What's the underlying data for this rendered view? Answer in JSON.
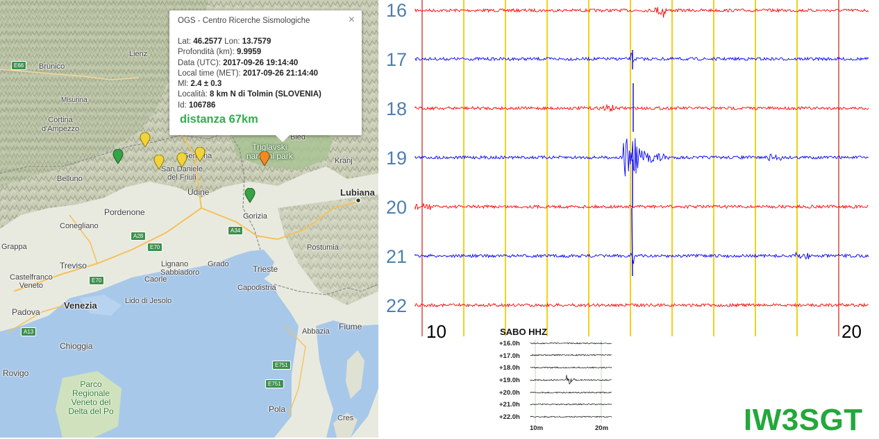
{
  "map": {
    "labels": {
      "lienz": "Lienz",
      "e66": "E66",
      "brunico": "Brunico",
      "misurina": "Misurina",
      "cortina": "Cortina\nd'Ampezzo",
      "bled": "Bled",
      "park": "Triglavski\nnarodni park",
      "kranj": "Kranj",
      "belluno": "Belluno",
      "gemona": "Gemona",
      "san_daniele": "San Daniele\ndel Friuli",
      "ljubljana": "Lubiana",
      "udine": "Udine",
      "pordenone": "Pordenone",
      "gorizia": "Gorizia",
      "a28": "A28",
      "a34": "A34",
      "conegliano": "Conegliano",
      "e70a": "E70",
      "grappa": "Grappa",
      "postumia": "Postumia",
      "treviso": "Treviso",
      "sabbiadoro": "Sabbiadoro",
      "lignano": "Lignano",
      "grado": "Grado",
      "trieste": "Trieste",
      "castelfranco": "Castelfranco\nVeneto",
      "e70b": "E70",
      "caorle": "Caorle",
      "capodistria": "Capodistria",
      "padova": "Padova",
      "venezia": "Venezia",
      "lido": "Lido di Jesolo",
      "fiume": "Fiume",
      "a13": "A13",
      "abbazia": "Abbazia",
      "chioggia": "Chioggia",
      "e751a": "E751",
      "rovigo": "Rovigo",
      "e751b": "E751",
      "delta_park": "Parco\nRegionale\nVeneto del\nDelta del Po",
      "pola": "Pola",
      "cres": "Cres"
    },
    "popup": {
      "title": "OGS - Centro Ricerche Sismologiche",
      "close": "×",
      "lat_label": "Lat:",
      "lat": "46.2577",
      "lon_label": "Lon:",
      "lon": "13.7579",
      "depth_label": "Profondità (km):",
      "depth": "9.9959",
      "utc_label": "Data (UTC):",
      "utc": "2017-09-26 19:14:40",
      "local_label": "Local time (MET):",
      "local": "2017-09-26 21:14:40",
      "ml_label": "Ml:",
      "ml": "2.4 ± 0.3",
      "loc_label": "Località:",
      "loc": "8 km N di Tolmin (SLOVENIA)",
      "id_label": "Id:",
      "id": "106786",
      "distance": "distanza 67km"
    }
  },
  "seismogram": {
    "hours": [
      "16",
      "17",
      "18",
      "19",
      "20",
      "21",
      "22"
    ],
    "minute_start": "10",
    "minute_end": "20",
    "trace_colors": [
      "#ff0000",
      "#0000ff"
    ],
    "grid_colors": {
      "gold": "#f2cc00",
      "red": "#d9534f"
    }
  },
  "inset": {
    "title": "SABO HHZ",
    "rows": [
      "+16.0h",
      "+17.0h",
      "+18.0h",
      "+19.0h",
      "+20.0h",
      "+21.0h",
      "+22.0h"
    ],
    "ticks": [
      "10m",
      "20m"
    ]
  },
  "callsign": "IW3SGT"
}
